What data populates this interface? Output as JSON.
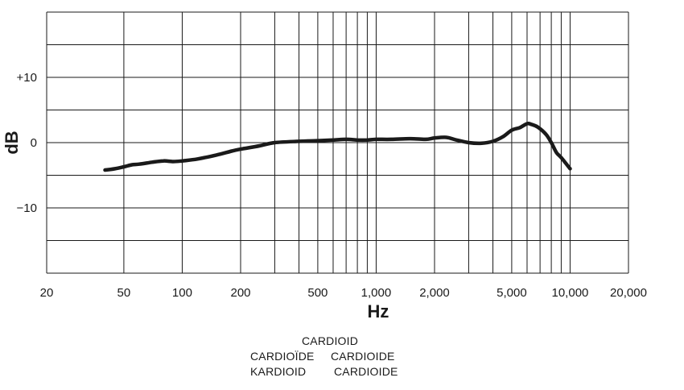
{
  "chart_data": {
    "type": "line",
    "title": "",
    "xlabel": "Hz",
    "ylabel": "dB",
    "x_scale": "log",
    "xlim": [
      20,
      20000
    ],
    "ylim": [
      -20,
      20
    ],
    "grid": true,
    "x_ticks": [
      {
        "value": 20,
        "label": "20"
      },
      {
        "value": 50,
        "label": "50"
      },
      {
        "value": 100,
        "label": "100"
      },
      {
        "value": 200,
        "label": "200"
      },
      {
        "value": 500,
        "label": "500"
      },
      {
        "value": 1000,
        "label": "1,000"
      },
      {
        "value": 2000,
        "label": "2,000"
      },
      {
        "value": 5000,
        "label": "5,000"
      },
      {
        "value": 10000,
        "label": "10,000"
      },
      {
        "value": 20000,
        "label": "20,000"
      }
    ],
    "x_gridlines": [
      20,
      50,
      100,
      200,
      300,
      400,
      500,
      600,
      700,
      800,
      900,
      1000,
      2000,
      3000,
      4000,
      5000,
      6000,
      7000,
      8000,
      9000,
      10000,
      20000
    ],
    "y_ticks": [
      {
        "value": 10,
        "label": "+10"
      },
      {
        "value": 0,
        "label": "0"
      },
      {
        "value": -10,
        "label": "−10"
      }
    ],
    "y_gridlines": [
      -20,
      -15,
      -10,
      -5,
      0,
      5,
      10,
      15,
      20
    ],
    "series": [
      {
        "color": "#1a1a1a",
        "x": [
          40,
          45,
          50,
          55,
          60,
          70,
          80,
          90,
          100,
          120,
          150,
          180,
          200,
          250,
          300,
          400,
          500,
          600,
          700,
          800,
          900,
          1000,
          1200,
          1500,
          1800,
          2000,
          2300,
          2600,
          3000,
          3500,
          4000,
          4500,
          5000,
          5500,
          6000,
          6300,
          6800,
          7500,
          8000,
          8500,
          9000,
          10000
        ],
        "y": [
          -4.2,
          -4.0,
          -3.7,
          -3.4,
          -3.3,
          -3.0,
          -2.8,
          -2.9,
          -2.8,
          -2.5,
          -1.9,
          -1.3,
          -1.0,
          -0.5,
          0.0,
          0.2,
          0.3,
          0.4,
          0.5,
          0.4,
          0.4,
          0.5,
          0.5,
          0.6,
          0.5,
          0.7,
          0.8,
          0.4,
          0.0,
          -0.1,
          0.2,
          0.9,
          1.9,
          2.3,
          2.9,
          2.8,
          2.4,
          1.3,
          0.0,
          -1.5,
          -2.3,
          -4.0
        ]
      }
    ],
    "legend": {
      "lines": [
        [
          "CARDIOID"
        ],
        [
          "CARDIOÏDE",
          "CARDIOIDE"
        ],
        [
          "KARDIOID",
          "CARDIOIDE"
        ]
      ]
    }
  }
}
